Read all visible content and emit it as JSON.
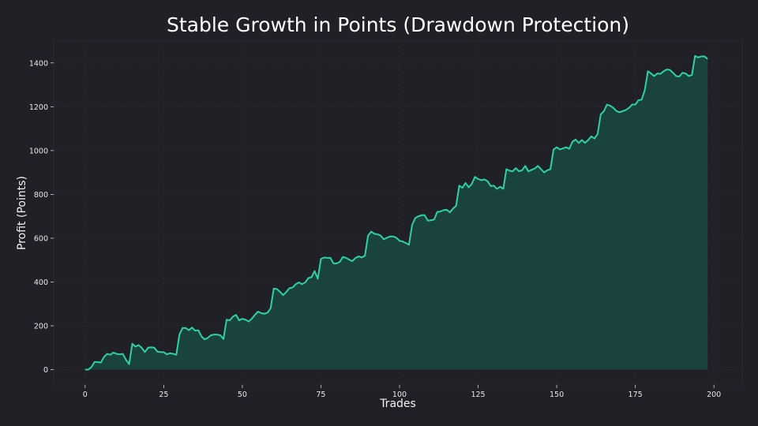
{
  "colors": {
    "background": "#212026",
    "line": "#2ed3a3",
    "fill": "#1a4540"
  },
  "chart_data": {
    "type": "area",
    "title": "Stable Growth in Points (Drawdown Protection)",
    "xlabel": "Trades",
    "ylabel": "Profit (Points)",
    "xlim": [
      -10,
      209
    ],
    "ylim": [
      -70,
      1500
    ],
    "xticks": [
      0,
      25,
      50,
      75,
      100,
      125,
      150,
      175,
      200
    ],
    "yticks": [
      0,
      200,
      400,
      600,
      800,
      1000,
      1200,
      1400
    ],
    "grid": true,
    "series": [
      {
        "values": [
          0,
          0,
          12,
          35,
          35,
          32,
          58,
          72,
          68,
          78,
          72,
          70,
          72,
          45,
          25,
          118,
          105,
          112,
          100,
          80,
          100,
          102,
          100,
          82,
          80,
          80,
          70,
          75,
          72,
          68,
          160,
          190,
          190,
          180,
          192,
          178,
          180,
          152,
          138,
          145,
          157,
          160,
          160,
          157,
          140,
          228,
          225,
          242,
          250,
          225,
          232,
          228,
          220,
          232,
          250,
          265,
          258,
          255,
          260,
          280,
          370,
          368,
          355,
          340,
          355,
          372,
          375,
          390,
          398,
          390,
          398,
          418,
          422,
          450,
          415,
          505,
          512,
          510,
          510,
          485,
          485,
          492,
          515,
          510,
          502,
          495,
          510,
          517,
          512,
          520,
          612,
          630,
          620,
          618,
          612,
          595,
          602,
          608,
          608,
          602,
          588,
          585,
          578,
          570,
          660,
          692,
          700,
          705,
          705,
          680,
          682,
          685,
          720,
          722,
          728,
          730,
          718,
          735,
          748,
          840,
          830,
          852,
          832,
          848,
          880,
          870,
          865,
          868,
          860,
          838,
          840,
          825,
          835,
          825,
          915,
          908,
          905,
          920,
          905,
          910,
          930,
          905,
          912,
          918,
          930,
          915,
          900,
          910,
          915,
          1005,
          1015,
          1005,
          1010,
          1015,
          1008,
          1040,
          1050,
          1035,
          1048,
          1035,
          1048,
          1065,
          1055,
          1075,
          1165,
          1180,
          1210,
          1205,
          1195,
          1180,
          1175,
          1180,
          1185,
          1195,
          1210,
          1210,
          1230,
          1232,
          1275,
          1362,
          1352,
          1340,
          1352,
          1350,
          1362,
          1370,
          1368,
          1355,
          1340,
          1338,
          1355,
          1352,
          1340,
          1345,
          1432,
          1425,
          1430,
          1430,
          1418
        ]
      }
    ]
  }
}
